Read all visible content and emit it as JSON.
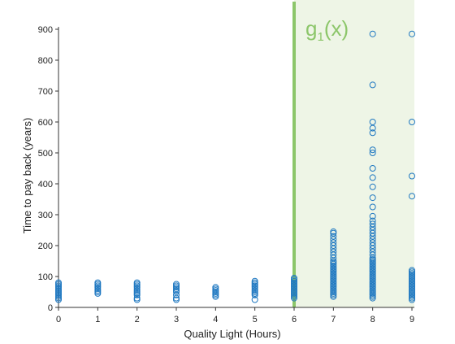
{
  "chart_data": {
    "type": "scatter",
    "title": "",
    "xlabel": "Quality Light (Hours)",
    "ylabel": "Time to pay back (years)",
    "xlim": [
      0,
      9
    ],
    "ylim": [
      0,
      900
    ],
    "x_ticks": [
      "0",
      "1",
      "2",
      "3",
      "4",
      "5",
      "6",
      "7",
      "8",
      "9"
    ],
    "y_ticks": [
      "0",
      "100",
      "200",
      "300",
      "400",
      "500",
      "600",
      "700",
      "800",
      "900"
    ],
    "grid": false,
    "point_color": "#1f78c1",
    "threshold": {
      "x": 6,
      "label_main": "g",
      "label_sub": "1",
      "label_tail": "(x)",
      "line_color": "#8cc66a",
      "fill_color": "#eef5e6"
    },
    "series": [
      {
        "points": [
          [
            0,
            25
          ],
          [
            0,
            30
          ],
          [
            0,
            35
          ],
          [
            0,
            40
          ],
          [
            0,
            45
          ],
          [
            0,
            50
          ],
          [
            0,
            55
          ],
          [
            0,
            60
          ],
          [
            0,
            65
          ],
          [
            0,
            70
          ],
          [
            0,
            75
          ],
          [
            0,
            80
          ],
          [
            1,
            45
          ],
          [
            1,
            50
          ],
          [
            1,
            55
          ],
          [
            1,
            60
          ],
          [
            1,
            65
          ],
          [
            1,
            70
          ],
          [
            1,
            75
          ],
          [
            1,
            80
          ],
          [
            2,
            25
          ],
          [
            2,
            30
          ],
          [
            2,
            40
          ],
          [
            2,
            45
          ],
          [
            2,
            50
          ],
          [
            2,
            55
          ],
          [
            2,
            60
          ],
          [
            2,
            65
          ],
          [
            2,
            70
          ],
          [
            2,
            75
          ],
          [
            2,
            80
          ],
          [
            3,
            25
          ],
          [
            3,
            30
          ],
          [
            3,
            40
          ],
          [
            3,
            50
          ],
          [
            3,
            55
          ],
          [
            3,
            60
          ],
          [
            3,
            65
          ],
          [
            3,
            70
          ],
          [
            3,
            75
          ],
          [
            4,
            35
          ],
          [
            4,
            40
          ],
          [
            4,
            45
          ],
          [
            4,
            50
          ],
          [
            4,
            55
          ],
          [
            4,
            60
          ],
          [
            4,
            65
          ],
          [
            5,
            25
          ],
          [
            5,
            40
          ],
          [
            5,
            45
          ],
          [
            5,
            50
          ],
          [
            5,
            55
          ],
          [
            5,
            60
          ],
          [
            5,
            65
          ],
          [
            5,
            70
          ],
          [
            5,
            75
          ],
          [
            5,
            80
          ],
          [
            5,
            85
          ],
          [
            6,
            30
          ],
          [
            6,
            35
          ],
          [
            6,
            40
          ],
          [
            6,
            45
          ],
          [
            6,
            50
          ],
          [
            6,
            55
          ],
          [
            6,
            60
          ],
          [
            6,
            65
          ],
          [
            6,
            70
          ],
          [
            6,
            75
          ],
          [
            6,
            80
          ],
          [
            6,
            85
          ],
          [
            6,
            90
          ],
          [
            6,
            95
          ],
          [
            7,
            35
          ],
          [
            7,
            40
          ],
          [
            7,
            45
          ],
          [
            7,
            50
          ],
          [
            7,
            55
          ],
          [
            7,
            60
          ],
          [
            7,
            65
          ],
          [
            7,
            70
          ],
          [
            7,
            75
          ],
          [
            7,
            80
          ],
          [
            7,
            85
          ],
          [
            7,
            90
          ],
          [
            7,
            95
          ],
          [
            7,
            100
          ],
          [
            7,
            105
          ],
          [
            7,
            110
          ],
          [
            7,
            115
          ],
          [
            7,
            120
          ],
          [
            7,
            125
          ],
          [
            7,
            130
          ],
          [
            7,
            135
          ],
          [
            7,
            140
          ],
          [
            7,
            145
          ],
          [
            7,
            150
          ],
          [
            7,
            160
          ],
          [
            7,
            170
          ],
          [
            7,
            180
          ],
          [
            7,
            190
          ],
          [
            7,
            200
          ],
          [
            7,
            210
          ],
          [
            7,
            220
          ],
          [
            7,
            230
          ],
          [
            7,
            240
          ],
          [
            7,
            245
          ],
          [
            8,
            30
          ],
          [
            8,
            35
          ],
          [
            8,
            40
          ],
          [
            8,
            45
          ],
          [
            8,
            50
          ],
          [
            8,
            55
          ],
          [
            8,
            60
          ],
          [
            8,
            65
          ],
          [
            8,
            70
          ],
          [
            8,
            75
          ],
          [
            8,
            80
          ],
          [
            8,
            85
          ],
          [
            8,
            90
          ],
          [
            8,
            95
          ],
          [
            8,
            100
          ],
          [
            8,
            105
          ],
          [
            8,
            110
          ],
          [
            8,
            115
          ],
          [
            8,
            120
          ],
          [
            8,
            125
          ],
          [
            8,
            130
          ],
          [
            8,
            135
          ],
          [
            8,
            140
          ],
          [
            8,
            145
          ],
          [
            8,
            150
          ],
          [
            8,
            155
          ],
          [
            8,
            160
          ],
          [
            8,
            170
          ],
          [
            8,
            180
          ],
          [
            8,
            190
          ],
          [
            8,
            200
          ],
          [
            8,
            210
          ],
          [
            8,
            220
          ],
          [
            8,
            230
          ],
          [
            8,
            240
          ],
          [
            8,
            250
          ],
          [
            8,
            260
          ],
          [
            8,
            270
          ],
          [
            8,
            280
          ],
          [
            8,
            295
          ],
          [
            8,
            325
          ],
          [
            8,
            355
          ],
          [
            8,
            390
          ],
          [
            8,
            420
          ],
          [
            8,
            450
          ],
          [
            8,
            500
          ],
          [
            8,
            510
          ],
          [
            8,
            565
          ],
          [
            8,
            580
          ],
          [
            8,
            600
          ],
          [
            8,
            720
          ],
          [
            8,
            885
          ],
          [
            9,
            25
          ],
          [
            9,
            30
          ],
          [
            9,
            35
          ],
          [
            9,
            40
          ],
          [
            9,
            45
          ],
          [
            9,
            50
          ],
          [
            9,
            55
          ],
          [
            9,
            60
          ],
          [
            9,
            65
          ],
          [
            9,
            70
          ],
          [
            9,
            75
          ],
          [
            9,
            80
          ],
          [
            9,
            85
          ],
          [
            9,
            90
          ],
          [
            9,
            95
          ],
          [
            9,
            100
          ],
          [
            9,
            105
          ],
          [
            9,
            110
          ],
          [
            9,
            115
          ],
          [
            9,
            120
          ],
          [
            9,
            360
          ],
          [
            9,
            425
          ],
          [
            9,
            600
          ],
          [
            9,
            885
          ]
        ]
      }
    ]
  }
}
